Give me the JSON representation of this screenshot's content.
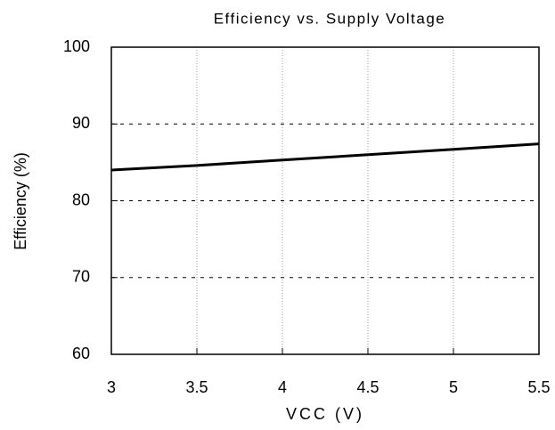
{
  "chart_data": {
    "type": "line",
    "title": "Efficiency vs. Supply Voltage",
    "x_label": "VCC (V)",
    "y_label": "Efficiency (%)",
    "series": [
      {
        "name": "Efficiency",
        "color": "#000000",
        "x": [
          3,
          3.5,
          4,
          4.5,
          5,
          5.5
        ],
        "values": [
          84.0,
          84.6,
          85.3,
          86.0,
          86.7,
          87.4
        ]
      }
    ],
    "xlim": [
      3,
      5.5
    ],
    "xticks": [
      3,
      3.5,
      4,
      4.5,
      5,
      5.5
    ],
    "ylim": [
      60,
      100
    ],
    "yticks": [
      60,
      70,
      80,
      90,
      100
    ],
    "grid": true
  }
}
